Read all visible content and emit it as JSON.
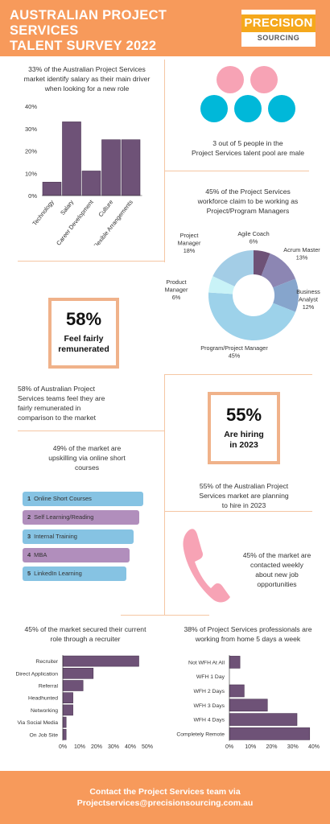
{
  "header": {
    "title_line1": "AUSTRALIAN PROJECT SERVICES",
    "title_line2": "TALENT SURVEY 2022",
    "logo_main": "PRECISION",
    "logo_sub": "SOURCING"
  },
  "colors": {
    "orange": "#f79a5b",
    "purple": "#6e5277",
    "cyan": "#00b8d9",
    "pink": "#f7a3b5",
    "blue": "#86c3e3",
    "lilac": "#b18ebc"
  },
  "salary_section": {
    "caption_line1": "33% of the Australian Project Services",
    "caption_line2": "market identify salary as their main driver",
    "caption_line3": "when looking for a new role"
  },
  "gender_section": {
    "caption_line1": "3 out of 5 people in the",
    "caption_line2": "Project Services talent pool are male"
  },
  "managers_section": {
    "caption_line1": "45% of the Project Services",
    "caption_line2": "workforce claim to be working as",
    "caption_line3": "Project/Program Managers"
  },
  "remunerated": {
    "value": "58%",
    "label_line1": "Feel fairly",
    "label_line2": "remunerated",
    "caption_line1": "58% of Australian Project",
    "caption_line2": "Services teams feel they are",
    "caption_line3": "fairly remunerated in",
    "caption_line4": "comparison to the market"
  },
  "hiring": {
    "value": "55%",
    "label_line1": "Are hiring",
    "label_line2": "in 2023",
    "caption_line1": "55% of the Australian Project",
    "caption_line2": "Services market are planning",
    "caption_line3": "to hire in 2023"
  },
  "upskilling": {
    "caption_line1": "49% of the market are",
    "caption_line2": "upskilling via online short",
    "caption_line3": "courses",
    "items": [
      {
        "rank": "1",
        "label": "Online Short Courses"
      },
      {
        "rank": "2",
        "label": "Self Learning/Reading"
      },
      {
        "rank": "3",
        "label": "Internal Training"
      },
      {
        "rank": "4",
        "label": "MBA"
      },
      {
        "rank": "5",
        "label": "LinkedIn Learning"
      }
    ]
  },
  "contacted": {
    "caption_line1": "45% of the market are",
    "caption_line2": "contacted weekly",
    "caption_line3": "about new job",
    "caption_line4": "opportunities"
  },
  "recruiter_section": {
    "caption_line1": "45% of the market secured their current",
    "caption_line2": "role through a recruiter"
  },
  "wfh_section": {
    "caption_line1": "38% of Project Services professionals are",
    "caption_line2": "working from home 5 days a week"
  },
  "footer": {
    "line1": "Contact the Project Services team via",
    "line2": "Projectservices@precisionsourcing.com.au"
  },
  "chart_data": [
    {
      "type": "bar",
      "categories": [
        "Technology",
        "Salary",
        "Career Development",
        "Culture",
        "Flexible Arrangements"
      ],
      "values": [
        6,
        33,
        11,
        25,
        25
      ],
      "title": "",
      "xlabel": "",
      "ylabel": "",
      "ylim": [
        0,
        40
      ],
      "yticks": [
        "0%",
        "10%",
        "20%",
        "30%",
        "40%"
      ],
      "grid": false
    },
    {
      "type": "pie",
      "style": "donut",
      "labels": [
        "Agile Coach",
        "Acrum Master",
        "Business Analyst",
        "Program/Project Manager",
        "Product Manager",
        "Project Manager"
      ],
      "values": [
        6,
        13,
        12,
        45,
        6,
        18
      ],
      "value_labels": [
        "6%",
        "13%",
        "12%",
        "45%",
        "6%",
        "18%"
      ],
      "colors": [
        "#6e5277",
        "#8c86b3",
        "#86a5cc",
        "#9dd2ea",
        "#c9f3f7",
        "#a3cde6"
      ]
    },
    {
      "type": "bar",
      "orientation": "horizontal",
      "categories": [
        "Recruiter",
        "Direct Application",
        "Referral",
        "Headhunted",
        "Networking",
        "Via Social Media",
        "On Job Site"
      ],
      "values": [
        45,
        18,
        12,
        6,
        6,
        2,
        2
      ],
      "xlim": [
        0,
        50
      ],
      "xticks": [
        "0%",
        "10%",
        "20%",
        "30%",
        "40%",
        "50%"
      ]
    },
    {
      "type": "bar",
      "orientation": "horizontal",
      "categories": [
        "Not WFH At All",
        "WFH 1 Day",
        "WFH 2 Days",
        "WFH 3 Days",
        "WFH 4 Days",
        "Completely Remote"
      ],
      "values": [
        5,
        0,
        7,
        18,
        32,
        38
      ],
      "xlim": [
        0,
        40
      ],
      "xticks": [
        "0%",
        "10%",
        "20%",
        "30%",
        "40%"
      ]
    }
  ]
}
